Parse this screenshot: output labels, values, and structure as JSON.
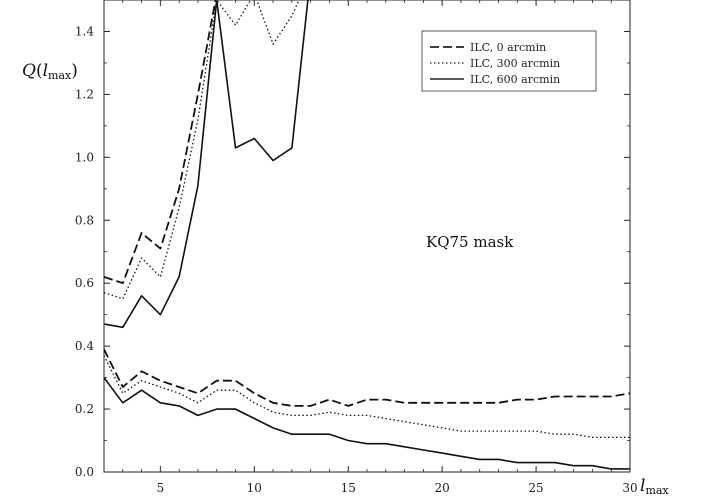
{
  "chart_data": {
    "type": "line",
    "ylabel": "Q(l_max)",
    "xlabel": "l_max",
    "xlim": [
      2,
      30
    ],
    "ylim": [
      0,
      1.5
    ],
    "x_ticks": [
      5,
      10,
      15,
      20,
      25,
      30
    ],
    "y_ticks": [
      0.0,
      0.2,
      0.4,
      0.6,
      0.8,
      1.0,
      1.2,
      1.4
    ],
    "annotation": "KQ75 mask",
    "legend_position": "top-right",
    "x": [
      2,
      3,
      4,
      5,
      6,
      7,
      8,
      9,
      10,
      11,
      12,
      13,
      14,
      15,
      16,
      17,
      18,
      19,
      20,
      21,
      22,
      23,
      24,
      25,
      26,
      27,
      28,
      29,
      30
    ],
    "series": [
      {
        "name": "ILC, 0 arcmin",
        "style": "dashed",
        "group": "upper",
        "values": [
          0.62,
          0.6,
          0.76,
          0.71,
          0.9,
          1.2,
          1.52,
          1.58,
          1.58,
          1.58,
          1.58,
          1.58,
          null,
          null,
          null,
          null,
          null,
          null,
          null,
          null,
          null,
          null,
          null,
          null,
          null,
          null,
          null,
          null,
          null
        ]
      },
      {
        "name": "ILC, 300 arcmin",
        "style": "dotted",
        "group": "upper",
        "values": [
          0.57,
          0.55,
          0.68,
          0.62,
          0.84,
          1.12,
          1.5,
          1.42,
          1.52,
          1.36,
          1.45,
          1.58,
          null,
          null,
          null,
          null,
          null,
          null,
          null,
          null,
          null,
          null,
          null,
          null,
          null,
          null,
          null,
          null,
          null
        ]
      },
      {
        "name": "ILC, 600 arcmin",
        "style": "solid",
        "group": "upper",
        "values": [
          0.47,
          0.46,
          0.56,
          0.5,
          0.62,
          0.91,
          1.5,
          1.03,
          1.06,
          0.99,
          1.03,
          1.58,
          null,
          null,
          null,
          null,
          null,
          null,
          null,
          null,
          null,
          null,
          null,
          null,
          null,
          null,
          null,
          null,
          null
        ]
      },
      {
        "name": "ILC, 0 arcmin",
        "style": "dashed",
        "group": "lower",
        "values": [
          0.39,
          0.27,
          0.32,
          0.29,
          0.27,
          0.25,
          0.29,
          0.29,
          0.25,
          0.22,
          0.21,
          0.21,
          0.23,
          0.21,
          0.23,
          0.23,
          0.22,
          0.22,
          0.22,
          0.22,
          0.22,
          0.22,
          0.23,
          0.23,
          0.24,
          0.24,
          0.24,
          0.24,
          0.25
        ]
      },
      {
        "name": "ILC, 300 arcmin",
        "style": "dotted",
        "group": "lower",
        "values": [
          0.37,
          0.25,
          0.29,
          0.27,
          0.25,
          0.22,
          0.26,
          0.26,
          0.22,
          0.19,
          0.18,
          0.18,
          0.19,
          0.18,
          0.18,
          0.17,
          0.16,
          0.15,
          0.14,
          0.13,
          0.13,
          0.13,
          0.13,
          0.13,
          0.12,
          0.12,
          0.11,
          0.11,
          0.11
        ]
      },
      {
        "name": "ILC, 600 arcmin",
        "style": "solid",
        "group": "lower",
        "values": [
          0.3,
          0.22,
          0.26,
          0.22,
          0.21,
          0.18,
          0.2,
          0.2,
          0.17,
          0.14,
          0.12,
          0.12,
          0.12,
          0.1,
          0.09,
          0.09,
          0.08,
          0.07,
          0.06,
          0.05,
          0.04,
          0.04,
          0.03,
          0.03,
          0.03,
          0.02,
          0.02,
          0.01,
          0.01
        ]
      }
    ],
    "legend": [
      {
        "label": "ILC, 0 arcmin",
        "style": "dashed"
      },
      {
        "label": "ILC, 300 arcmin",
        "style": "dotted"
      },
      {
        "label": "ILC, 600 arcmin",
        "style": "solid"
      }
    ]
  }
}
